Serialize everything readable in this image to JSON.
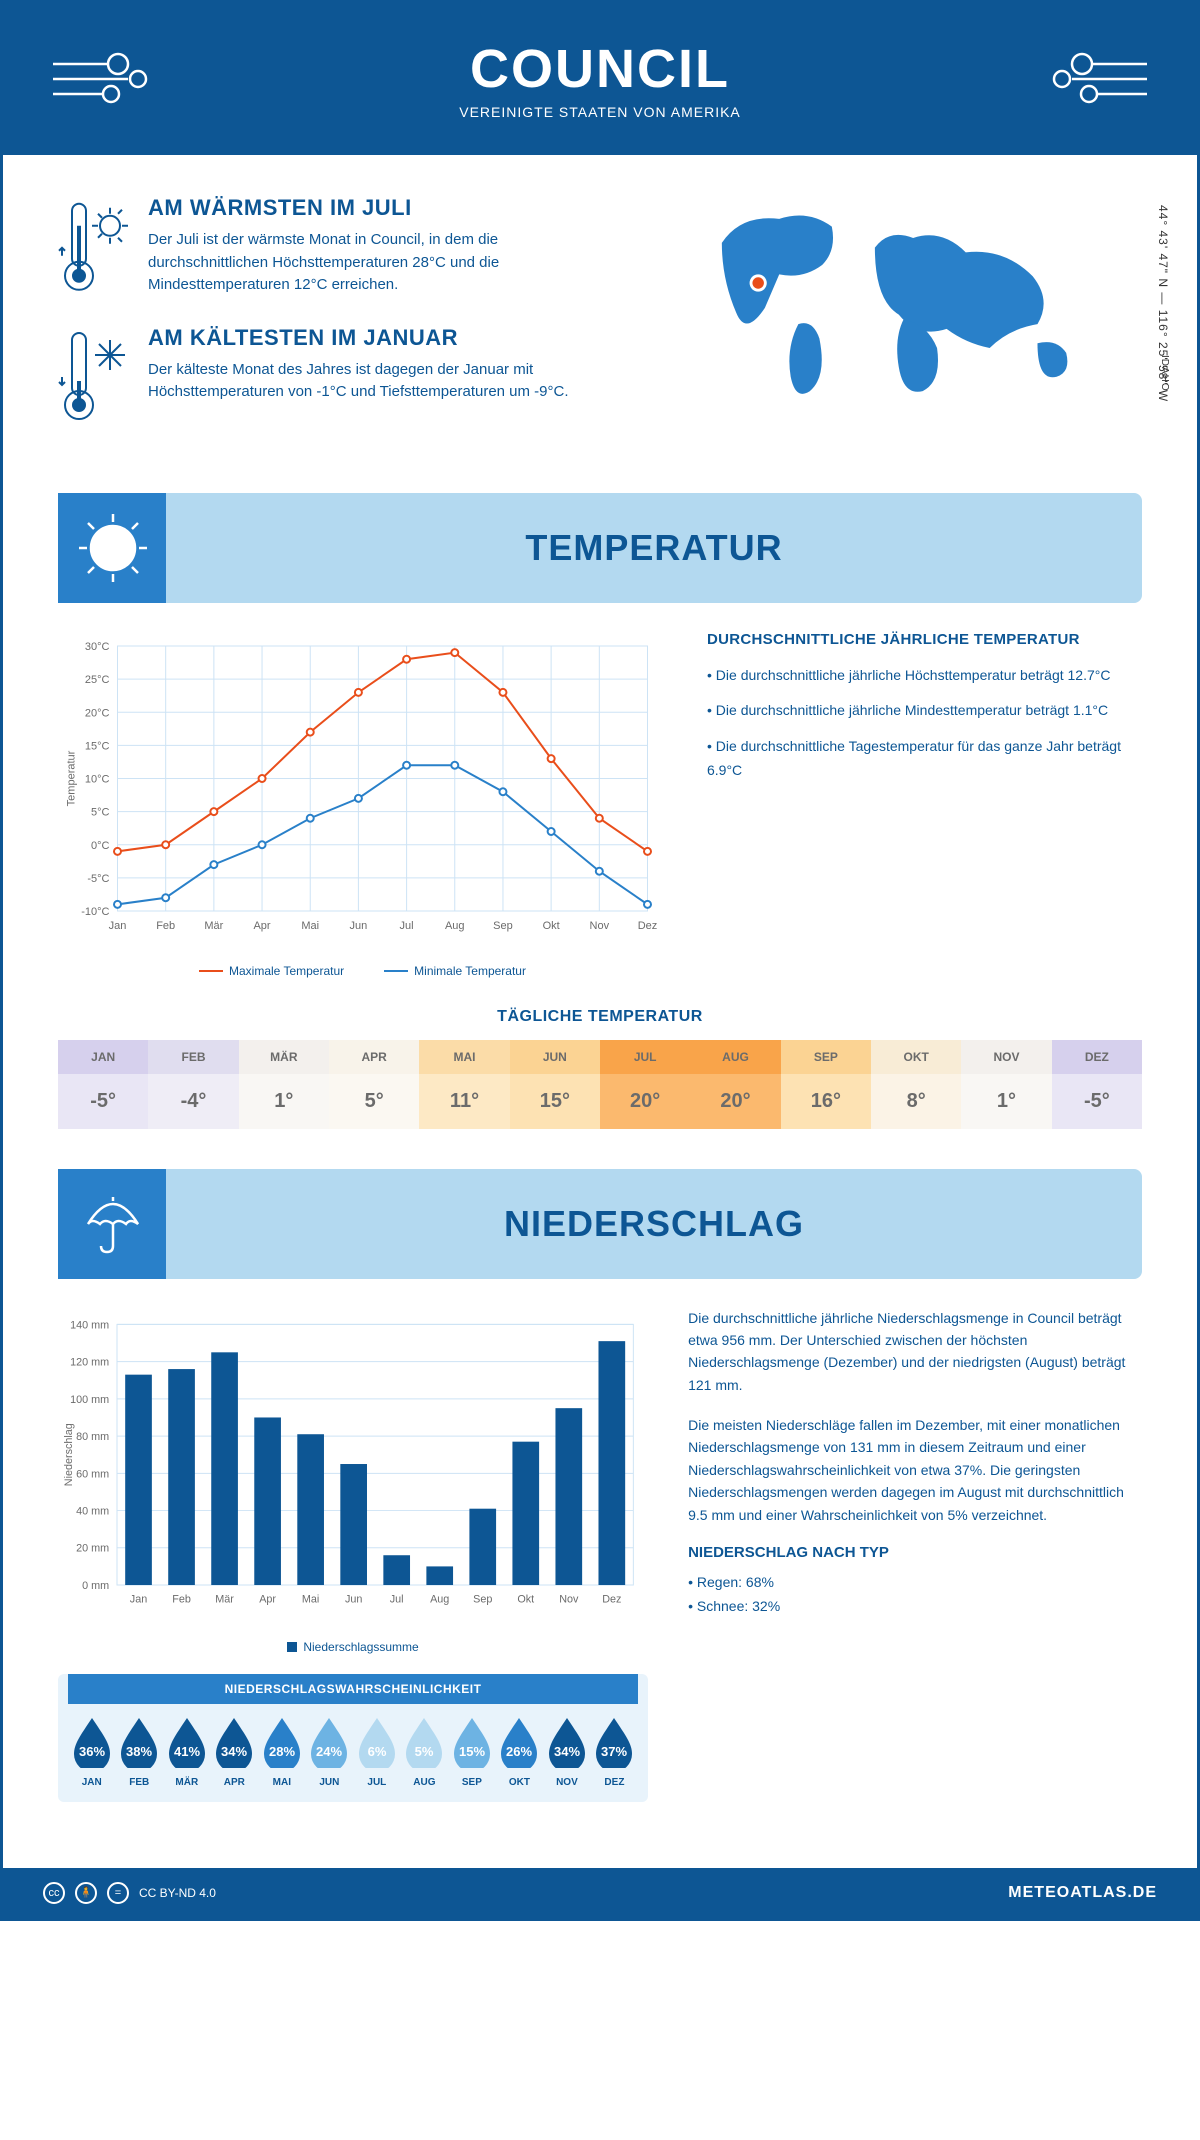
{
  "header": {
    "title": "COUNCIL",
    "subtitle": "VEREINIGTE STAATEN VON AMERIKA"
  },
  "coords": "44° 43' 47\" N — 116° 25' 58\" W",
  "region": "IDAHO",
  "intro": {
    "warm": {
      "title": "AM WÄRMSTEN IM JULI",
      "text": "Der Juli ist der wärmste Monat in Council, in dem die durchschnittlichen Höchsttemperaturen 28°C und die Mindesttemperaturen 12°C erreichen."
    },
    "cold": {
      "title": "AM KÄLTESTEN IM JANUAR",
      "text": "Der kälteste Monat des Jahres ist dagegen der Januar mit Höchsttemperaturen von -1°C und Tiefsttemperaturen um -9°C."
    }
  },
  "sections": {
    "temp": "TEMPERATUR",
    "precip": "NIEDERSCHLAG"
  },
  "temp_chart": {
    "type": "line",
    "months": [
      "Jan",
      "Feb",
      "Mär",
      "Apr",
      "Mai",
      "Jun",
      "Jul",
      "Aug",
      "Sep",
      "Okt",
      "Nov",
      "Dez"
    ],
    "max_series": [
      -1,
      0,
      5,
      10,
      17,
      23,
      28,
      29,
      23,
      13,
      4,
      -1
    ],
    "min_series": [
      -9,
      -8,
      -3,
      0,
      4,
      7,
      12,
      12,
      8,
      2,
      -4,
      -9
    ],
    "max_color": "#e94e1b",
    "min_color": "#2980c9",
    "ylabel": "Temperatur",
    "ylim": [
      -10,
      30
    ],
    "ytick_step": 5,
    "grid_color": "#cde3f5",
    "max_label": "Maximale Temperatur",
    "min_label": "Minimale Temperatur",
    "marker": "circle",
    "line_width": 2
  },
  "temp_info": {
    "heading": "DURCHSCHNITTLICHE JÄHRLICHE TEMPERATUR",
    "bullets": [
      "• Die durchschnittliche jährliche Höchsttemperatur beträgt 12.7°C",
      "• Die durchschnittliche jährliche Mindesttemperatur beträgt 1.1°C",
      "• Die durchschnittliche Tagestemperatur für das ganze Jahr beträgt 6.9°C"
    ]
  },
  "daily": {
    "title": "TÄGLICHE TEMPERATUR",
    "months": [
      "JAN",
      "FEB",
      "MÄR",
      "APR",
      "MAI",
      "JUN",
      "JUL",
      "AUG",
      "SEP",
      "OKT",
      "NOV",
      "DEZ"
    ],
    "temps": [
      "-5°",
      "-4°",
      "1°",
      "5°",
      "11°",
      "15°",
      "20°",
      "20°",
      "16°",
      "8°",
      "1°",
      "-5°"
    ],
    "header_bg": [
      "#d6d0ed",
      "#e0ddef",
      "#f3f0ed",
      "#f8f3ea",
      "#fbdca8",
      "#fbd393",
      "#f9a44a",
      "#f9a44a",
      "#fbd393",
      "#f8ecd6",
      "#f3f0ed",
      "#d6d0ed"
    ],
    "value_bg": [
      "#e9e6f5",
      "#efedf6",
      "#f9f7f4",
      "#fbf8f2",
      "#fde9c5",
      "#fde2b3",
      "#fbb96e",
      "#fbb96e",
      "#fde2b3",
      "#fbf3e6",
      "#f9f7f4",
      "#e9e6f5"
    ],
    "text_color": "#6b6b6b"
  },
  "precip_chart": {
    "type": "bar",
    "months": [
      "Jan",
      "Feb",
      "Mär",
      "Apr",
      "Mai",
      "Jun",
      "Jul",
      "Aug",
      "Sep",
      "Okt",
      "Nov",
      "Dez"
    ],
    "values": [
      113,
      116,
      125,
      90,
      81,
      65,
      16,
      10,
      41,
      77,
      95,
      131
    ],
    "bar_color": "#0d5694",
    "ylabel": "Niederschlag",
    "ylim": [
      0,
      140
    ],
    "ytick_step": 20,
    "grid_color": "#cde3f5",
    "legend": "Niederschlagssumme"
  },
  "precip_text": {
    "p1": "Die durchschnittliche jährliche Niederschlagsmenge in Council beträgt etwa 956 mm. Der Unterschied zwischen der höchsten Niederschlagsmenge (Dezember) und der niedrigsten (August) beträgt 121 mm.",
    "p2": "Die meisten Niederschläge fallen im Dezember, mit einer monatlichen Niederschlagsmenge von 131 mm in diesem Zeitraum und einer Niederschlagswahrscheinlichkeit von etwa 37%. Die geringsten Niederschlagsmengen werden dagegen im August mit durchschnittlich 9.5 mm und einer Wahrscheinlichkeit von 5% verzeichnet.",
    "type_heading": "NIEDERSCHLAG NACH TYP",
    "type1": "• Regen: 68%",
    "type2": "• Schnee: 32%"
  },
  "prob": {
    "title": "NIEDERSCHLAGSWAHRSCHEINLICHKEIT",
    "months": [
      "JAN",
      "FEB",
      "MÄR",
      "APR",
      "MAI",
      "JUN",
      "JUL",
      "AUG",
      "SEP",
      "OKT",
      "NOV",
      "DEZ"
    ],
    "values": [
      "36%",
      "38%",
      "41%",
      "34%",
      "28%",
      "24%",
      "6%",
      "5%",
      "15%",
      "26%",
      "34%",
      "37%"
    ],
    "colors": [
      "#0d5694",
      "#0d5694",
      "#0d5694",
      "#0d5694",
      "#2980c9",
      "#6db3e3",
      "#b3d9f0",
      "#b3d9f0",
      "#6db3e3",
      "#2980c9",
      "#0d5694",
      "#0d5694"
    ]
  },
  "footer": {
    "license": "CC BY-ND 4.0",
    "brand": "METEOATLAS.DE"
  },
  "colors": {
    "primary": "#0d5694",
    "light_blue": "#b3d9f0",
    "mid_blue": "#2980c9"
  }
}
